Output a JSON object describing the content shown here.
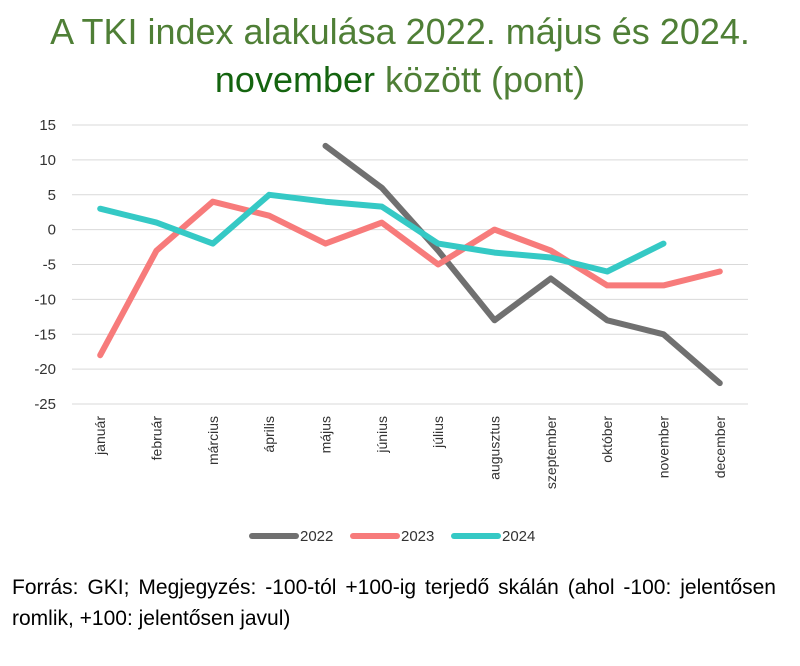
{
  "title": {
    "line1": "A TKI index alakulása 2022. május és 2024.",
    "line2_highlight": "november",
    "line2_rest": " között (pont)"
  },
  "colors": {
    "title": "#4f7f36",
    "title_highlight": "#14640f",
    "series_2022": "#707070",
    "series_2023": "#f77b7b",
    "series_2024": "#35c9c5",
    "grid": "#d9d9d9"
  },
  "chart_data": {
    "type": "line",
    "categories": [
      "január",
      "február",
      "március",
      "április",
      "május",
      "június",
      "július",
      "augusztus",
      "szeptember",
      "október",
      "november",
      "december"
    ],
    "ylim": [
      -25,
      15
    ],
    "yticks": [
      15,
      10,
      5,
      0,
      -5,
      -10,
      -15,
      -20,
      -25
    ],
    "grid": true,
    "legend_position": "bottom",
    "series": [
      {
        "name": "2022",
        "color": "#707070",
        "values": [
          null,
          null,
          null,
          null,
          12,
          6,
          -3,
          -13,
          -7,
          -13,
          -15,
          -22
        ]
      },
      {
        "name": "2023",
        "color": "#f77b7b",
        "values": [
          -18,
          -3,
          4,
          2,
          -2,
          1,
          -5,
          0,
          -3,
          -8,
          -8,
          -6
        ]
      },
      {
        "name": "2024",
        "color": "#35c9c5",
        "values": [
          3,
          1,
          -2,
          5,
          4,
          3.3,
          -2,
          -3.3,
          -4,
          -6,
          -2,
          null
        ]
      }
    ]
  },
  "source_note": "Forrás: GKI; Megjegyzés: -100-tól +100-ig terjedő skálán (ahol -100: jelentősen romlik, +100: jelentősen javul)"
}
